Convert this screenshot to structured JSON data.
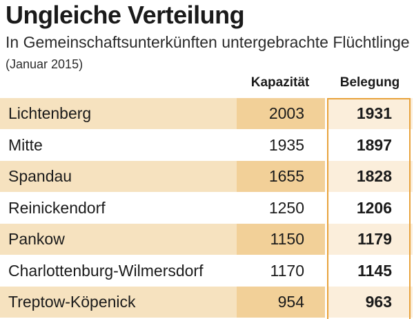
{
  "header": {
    "title": "Ungleiche Verteilung",
    "subtitle": "In Gemeinschaftsunterkünften untergebrachte Flüchtlinge",
    "date_note": "(Januar 2015)"
  },
  "table": {
    "columns": [
      "Kapazität",
      "Belegung"
    ],
    "rows": [
      {
        "name": "Lichtenberg",
        "kapazitaet": "2003",
        "belegung": "1931"
      },
      {
        "name": "Mitte",
        "kapazitaet": "1935",
        "belegung": "1897"
      },
      {
        "name": "Spandau",
        "kapazitaet": "1655",
        "belegung": "1828"
      },
      {
        "name": "Reinickendorf",
        "kapazitaet": "1250",
        "belegung": "1206"
      },
      {
        "name": "Pankow",
        "kapazitaet": "1150",
        "belegung": "1179"
      },
      {
        "name": "Charlottenburg-Wilmersdorf",
        "kapazitaet": "1170",
        "belegung": "1145"
      },
      {
        "name": "Treptow-Köpenick",
        "kapazitaet": "954",
        "belegung": "963"
      }
    ]
  },
  "colors": {
    "shade_name": "#f6e2bf",
    "shade_capacity": "#f2d098",
    "shade_belegung": "#fbeedb",
    "frame": "#e8a23a"
  },
  "chart_data": {
    "type": "table",
    "title": "Ungleiche Verteilung",
    "subtitle": "In Gemeinschaftsunterkünften untergebrachte Flüchtlinge (Januar 2015)",
    "columns": [
      "Kapazität",
      "Belegung"
    ],
    "categories": [
      "Lichtenberg",
      "Mitte",
      "Spandau",
      "Reinickendorf",
      "Pankow",
      "Charlottenburg-Wilmersdorf",
      "Treptow-Köpenick"
    ],
    "series": [
      {
        "name": "Kapazität",
        "values": [
          2003,
          1935,
          1655,
          1250,
          1150,
          1170,
          954
        ]
      },
      {
        "name": "Belegung",
        "values": [
          1931,
          1897,
          1828,
          1206,
          1179,
          1145,
          963
        ]
      }
    ]
  }
}
